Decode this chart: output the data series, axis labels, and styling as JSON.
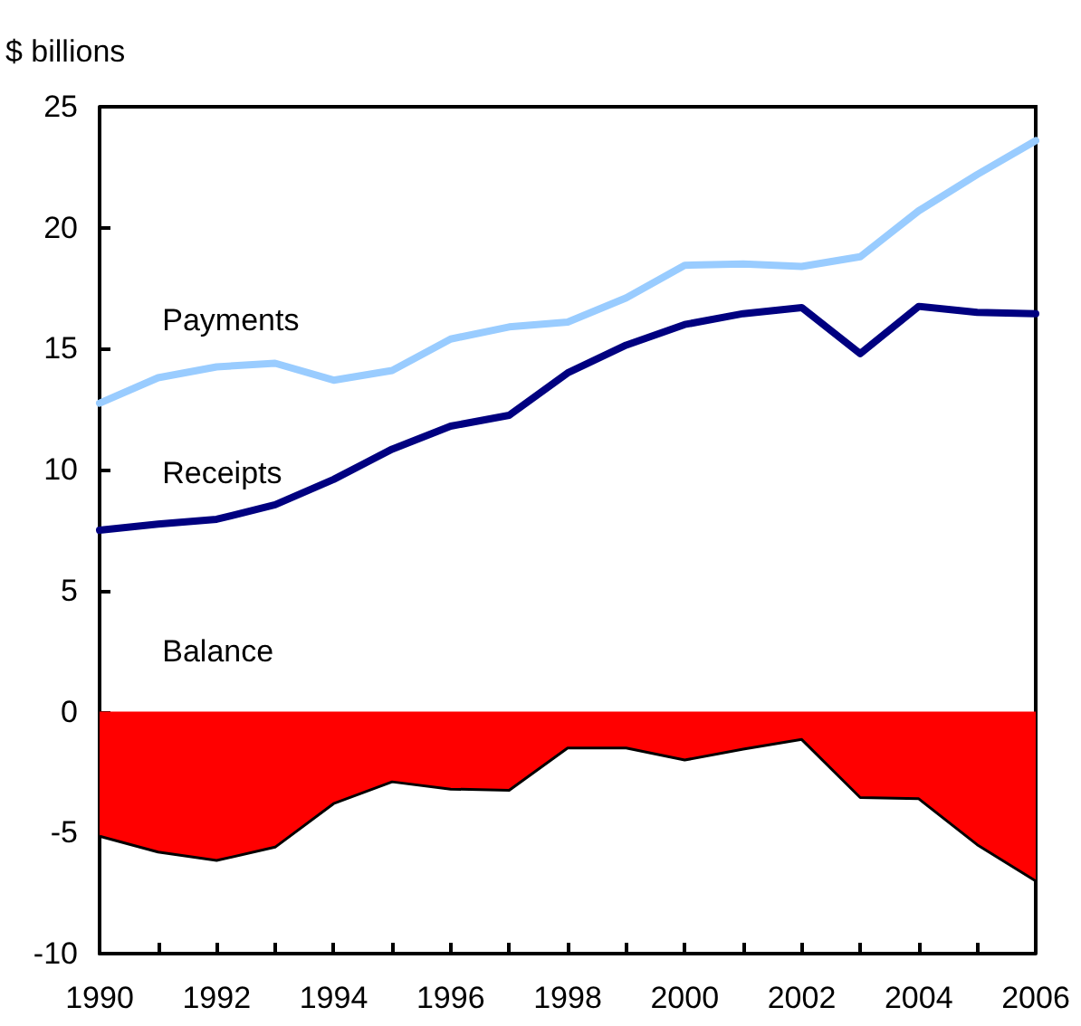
{
  "chart_data": {
    "type": "line",
    "ylabel": "$ billions",
    "x": [
      1990,
      1991,
      1992,
      1993,
      1994,
      1995,
      1996,
      1997,
      1998,
      1999,
      2000,
      2001,
      2002,
      2003,
      2004,
      2005,
      2006
    ],
    "series": [
      {
        "name": "Payments",
        "color": "#99ccff",
        "values": [
          12.75,
          13.8,
          14.25,
          14.4,
          13.7,
          14.1,
          15.4,
          15.9,
          16.1,
          17.1,
          18.45,
          18.5,
          18.4,
          18.8,
          20.7,
          22.2,
          23.6
        ]
      },
      {
        "name": "Receipts",
        "color": "#000080",
        "values": [
          7.5,
          7.75,
          7.95,
          8.55,
          9.6,
          10.85,
          11.8,
          12.25,
          14.0,
          15.15,
          16.0,
          16.45,
          16.7,
          14.8,
          16.75,
          16.5,
          16.45
        ]
      },
      {
        "name": "Balance",
        "type": "area",
        "color": "#ff0000",
        "values": [
          -5.15,
          -5.8,
          -6.15,
          -5.6,
          -3.8,
          -2.9,
          -3.2,
          -3.25,
          -1.5,
          -1.5,
          -2.0,
          -1.55,
          -1.15,
          -3.55,
          -3.6,
          -5.5,
          -7.0
        ]
      }
    ],
    "xlim": [
      1990,
      2006
    ],
    "xticks": [
      1990,
      {
        "value": 1991,
        "label": null
      },
      1992,
      {
        "value": 1993,
        "label": null
      },
      1994,
      {
        "value": 1995,
        "label": null
      },
      1996,
      {
        "value": 1997,
        "label": null
      },
      1998,
      {
        "value": 1999,
        "label": null
      },
      2000,
      {
        "value": 2001,
        "label": null
      },
      2002,
      {
        "value": 2003,
        "label": null
      },
      2004,
      {
        "value": 2005,
        "label": null
      },
      2006
    ],
    "ylim": [
      -10,
      25
    ],
    "yticks": [
      -10,
      -5,
      0,
      5,
      10,
      15,
      20,
      25
    ],
    "grid": false,
    "legend": false,
    "marker": "none",
    "line_style": "solid"
  }
}
